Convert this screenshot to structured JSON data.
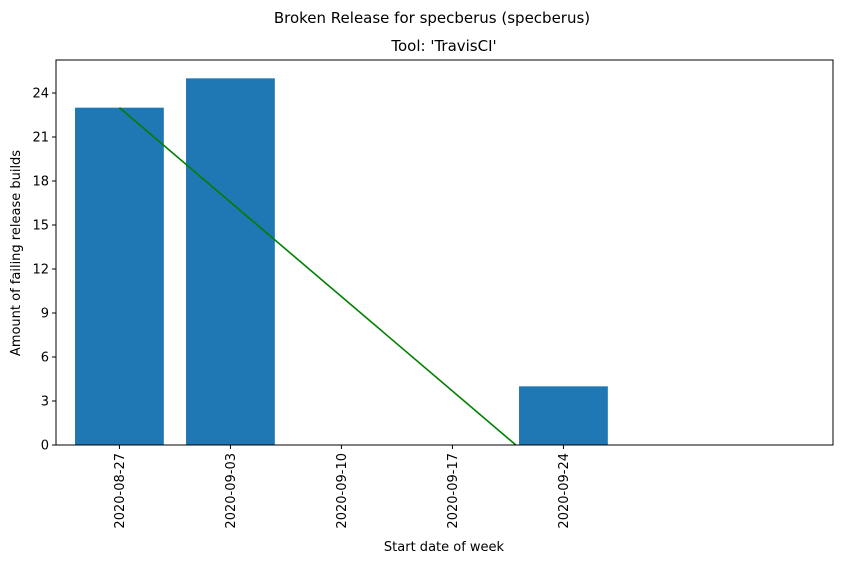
{
  "chart_data": {
    "type": "bar",
    "title": "Broken Release for specberus (specberus)",
    "subtitle": "Tool: 'TravisCI'",
    "xlabel": "Start date of week",
    "ylabel": "Amount of failing release builds",
    "categories": [
      "2020-08-27",
      "2020-09-03",
      "2020-09-10",
      "2020-09-17",
      "2020-09-24"
    ],
    "series": [
      {
        "type": "bar",
        "color": "#1f77b4",
        "values": [
          23,
          25,
          0,
          0,
          4
        ]
      },
      {
        "type": "line",
        "color": "#008000",
        "points": [
          {
            "x": "2020-08-27",
            "y": 23
          },
          {
            "x": "2020-09-21",
            "y": 0
          }
        ]
      }
    ],
    "y_ticks": [
      0,
      3,
      6,
      9,
      12,
      15,
      18,
      21,
      24
    ],
    "ylim": [
      0,
      26.25
    ],
    "xlim": [
      "2020-08-23",
      "2020-10-11"
    ],
    "grid": false,
    "legend": "none"
  }
}
